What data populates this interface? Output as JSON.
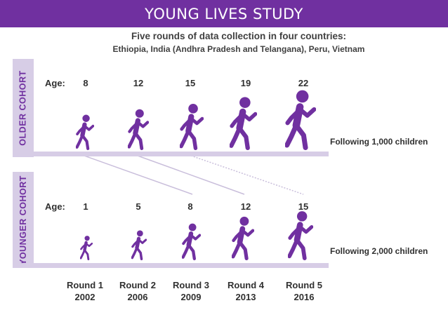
{
  "banner": {
    "title": "YOUNG LIVES STUDY"
  },
  "subtitle": {
    "line1": "Five rounds of data collection in four countries:",
    "line2": "Ethiopia, India (Andhra Pradesh and Telangana), Peru, Vietnam"
  },
  "older_cohort": {
    "label": "OLDER COHORT",
    "age_label": "Age:",
    "ages": [
      "8",
      "12",
      "15",
      "19",
      "22"
    ],
    "following": "Following 1,000 children"
  },
  "younger_cohort": {
    "label": "YOUNGER COHORT",
    "age_label": "Age:",
    "ages": [
      "1",
      "5",
      "8",
      "12",
      "15"
    ],
    "following": "Following 2,000 children"
  },
  "rounds": [
    {
      "name": "Round 1",
      "year": "2002"
    },
    {
      "name": "Round 2",
      "year": "2006"
    },
    {
      "name": "Round 3",
      "year": "2009"
    },
    {
      "name": "Round 4",
      "year": "2013"
    },
    {
      "name": "Round 5",
      "year": "2016"
    }
  ],
  "colors": {
    "purple": "#7030a0",
    "band": "#d7cde6",
    "text": "#303030"
  },
  "icons": [
    "running-child-icon"
  ]
}
